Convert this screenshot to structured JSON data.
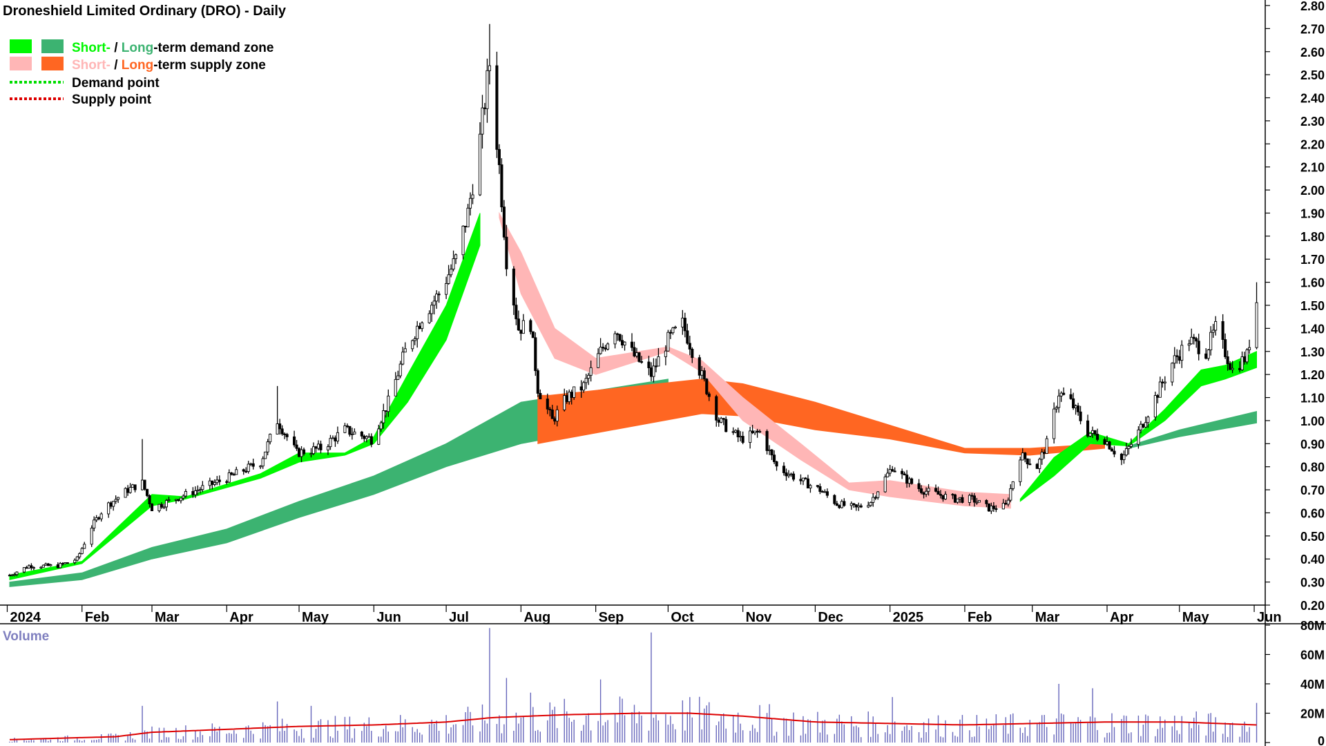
{
  "colors": {
    "short_demand": "#00f700",
    "long_demand": "#3cb371",
    "short_supply": "#ffb6b6",
    "long_supply": "#ff6622",
    "demand_point": "#00dd00",
    "supply_point": "#dd0000",
    "candle": "#000000",
    "volume_bar": "#6666bb",
    "volume_ma": "#dd0000"
  },
  "chart_data": [
    {
      "type": "candlestick",
      "title": "Droneshield Limited Ordinary (DRO) - Daily",
      "y_ticks": [
        "2.80",
        "2.70",
        "2.60",
        "2.50",
        "2.40",
        "2.30",
        "2.20",
        "2.10",
        "2.00",
        "1.90",
        "1.80",
        "1.70",
        "1.60",
        "1.50",
        "1.40",
        "1.30",
        "1.20",
        "1.10",
        "1.00",
        "0.90",
        "0.80",
        "0.70",
        "0.60",
        "0.50",
        "0.40",
        "0.30",
        "0.20"
      ],
      "ylim": [
        0.2,
        2.8
      ],
      "x_ticks": [
        "2024",
        "Feb",
        "Mar",
        "Apr",
        "May",
        "Jun",
        "Jul",
        "Aug",
        "Sep",
        "Oct",
        "Nov",
        "Dec",
        "2025",
        "Feb",
        "Mar",
        "Apr",
        "May",
        "Jun"
      ],
      "legend": [
        {
          "swatches": [
            "short_demand",
            "long_demand"
          ],
          "parts": [
            "Short-",
            " / ",
            "Long",
            "-term demand zone"
          ]
        },
        {
          "swatches": [
            "short_supply",
            "long_supply"
          ],
          "parts": [
            "Short-",
            " / ",
            "Long",
            "-term supply zone"
          ]
        },
        {
          "dotted": "demand_point",
          "text": "Demand point"
        },
        {
          "dotted": "supply_point",
          "text": "Supply point"
        }
      ],
      "close_path": [
        [
          "2024-01-02",
          0.33
        ],
        [
          "2024-01-10",
          0.37
        ],
        [
          "2024-01-22",
          0.37
        ],
        [
          "2024-01-30",
          0.4
        ],
        [
          "2024-02-05",
          0.54
        ],
        [
          "2024-02-10",
          0.62
        ],
        [
          "2024-02-20",
          0.7
        ],
        [
          "2024-02-26",
          0.73
        ],
        [
          "2024-03-01",
          0.62
        ],
        [
          "2024-03-08",
          0.65
        ],
        [
          "2024-03-20",
          0.7
        ],
        [
          "2024-04-01",
          0.75
        ],
        [
          "2024-04-15",
          0.82
        ],
        [
          "2024-04-22",
          1.0
        ],
        [
          "2024-04-30",
          0.86
        ],
        [
          "2024-05-10",
          0.88
        ],
        [
          "2024-05-20",
          0.96
        ],
        [
          "2024-05-31",
          0.92
        ],
        [
          "2024-06-07",
          1.08
        ],
        [
          "2024-06-14",
          1.3
        ],
        [
          "2024-06-21",
          1.45
        ],
        [
          "2024-06-28",
          1.55
        ],
        [
          "2024-07-05",
          1.7
        ],
        [
          "2024-07-10",
          1.9
        ],
        [
          "2024-07-15",
          2.22
        ],
        [
          "2024-07-19",
          2.55
        ],
        [
          "2024-07-23",
          2.1
        ],
        [
          "2024-07-26",
          1.7
        ],
        [
          "2024-07-31",
          1.4
        ],
        [
          "2024-08-05",
          1.42
        ],
        [
          "2024-08-08",
          1.14
        ],
        [
          "2024-08-14",
          1.0
        ],
        [
          "2024-08-20",
          1.1
        ],
        [
          "2024-08-27",
          1.15
        ],
        [
          "2024-09-03",
          1.3
        ],
        [
          "2024-09-09",
          1.4
        ],
        [
          "2024-09-17",
          1.28
        ],
        [
          "2024-09-24",
          1.2
        ],
        [
          "2024-10-01",
          1.35
        ],
        [
          "2024-10-07",
          1.42
        ],
        [
          "2024-10-14",
          1.22
        ],
        [
          "2024-10-22",
          1.0
        ],
        [
          "2024-10-31",
          0.92
        ],
        [
          "2024-11-08",
          0.95
        ],
        [
          "2024-11-15",
          0.8
        ],
        [
          "2024-11-25",
          0.74
        ],
        [
          "2024-12-03",
          0.7
        ],
        [
          "2024-12-10",
          0.64
        ],
        [
          "2024-12-18",
          0.62
        ],
        [
          "2024-12-24",
          0.65
        ],
        [
          "2025-01-02",
          0.8
        ],
        [
          "2025-01-07",
          0.75
        ],
        [
          "2025-01-14",
          0.7
        ],
        [
          "2025-01-21",
          0.68
        ],
        [
          "2025-01-28",
          0.66
        ],
        [
          "2025-02-04",
          0.66
        ],
        [
          "2025-02-11",
          0.62
        ],
        [
          "2025-02-18",
          0.63
        ],
        [
          "2025-02-24",
          0.85
        ],
        [
          "2025-03-03",
          0.8
        ],
        [
          "2025-03-07",
          0.9
        ],
        [
          "2025-03-12",
          1.12
        ],
        [
          "2025-03-17",
          1.08
        ],
        [
          "2025-03-24",
          0.95
        ],
        [
          "2025-03-31",
          0.92
        ],
        [
          "2025-04-07",
          0.83
        ],
        [
          "2025-04-14",
          0.95
        ],
        [
          "2025-04-21",
          1.1
        ],
        [
          "2025-04-28",
          1.25
        ],
        [
          "2025-05-05",
          1.35
        ],
        [
          "2025-05-12",
          1.3
        ],
        [
          "2025-05-16",
          1.4
        ],
        [
          "2025-05-23",
          1.22
        ],
        [
          "2025-05-29",
          1.28
        ],
        [
          "2025-06-02",
          1.52
        ]
      ],
      "wick_spikes": [
        {
          "date": "2024-07-19",
          "high": 2.72
        },
        {
          "date": "2024-02-26",
          "high": 0.92
        },
        {
          "date": "2024-04-22",
          "high": 1.15
        },
        {
          "date": "2025-06-02",
          "high": 1.6
        }
      ],
      "short_demand_zone": [
        [
          "2024-01-02",
          0.31,
          0.33
        ],
        [
          "2024-02-01",
          0.38,
          0.39
        ],
        [
          "2024-02-15",
          0.5,
          0.53
        ],
        [
          "2024-03-01",
          0.63,
          0.68
        ],
        [
          "2024-03-15",
          0.66,
          0.67
        ],
        [
          "2024-04-15",
          0.75,
          0.77
        ],
        [
          "2024-05-01",
          0.82,
          0.86
        ],
        [
          "2024-05-20",
          0.85,
          0.86
        ],
        [
          "2024-06-01",
          0.9,
          0.93
        ],
        [
          "2024-06-15",
          1.08,
          1.2
        ],
        [
          "2024-07-01",
          1.35,
          1.5
        ],
        [
          "2024-07-15",
          1.76,
          1.9
        ]
      ],
      "long_demand_zone": [
        [
          "2024-01-02",
          0.28,
          0.3
        ],
        [
          "2024-02-01",
          0.31,
          0.34
        ],
        [
          "2024-03-01",
          0.4,
          0.45
        ],
        [
          "2024-04-01",
          0.47,
          0.53
        ],
        [
          "2024-05-01",
          0.58,
          0.65
        ],
        [
          "2024-06-01",
          0.68,
          0.76
        ],
        [
          "2024-07-01",
          0.8,
          0.9
        ],
        [
          "2024-08-01",
          0.9,
          1.08
        ],
        [
          "2024-09-01",
          0.96,
          1.13
        ],
        [
          "2024-10-01",
          1.03,
          1.18
        ]
      ],
      "long_supply_zone": [
        [
          "2024-08-08",
          0.9,
          1.11
        ],
        [
          "2024-08-13",
          0.91,
          1.11
        ],
        [
          "2024-10-15",
          1.03,
          1.18
        ],
        [
          "2024-11-01",
          1.02,
          1.16
        ],
        [
          "2024-12-01",
          0.96,
          1.08
        ],
        [
          "2025-01-01",
          0.92,
          0.98
        ],
        [
          "2025-02-01",
          0.86,
          0.88
        ],
        [
          "2025-02-28",
          0.85,
          0.88
        ],
        [
          "2025-03-31",
          0.88,
          0.9
        ]
      ],
      "short_supply_zone": [
        [
          "2024-07-23",
          1.88,
          1.9
        ],
        [
          "2024-08-01",
          1.55,
          1.73
        ],
        [
          "2024-08-15",
          1.27,
          1.4
        ],
        [
          "2024-09-01",
          1.2,
          1.27
        ],
        [
          "2024-10-01",
          1.3,
          1.32
        ],
        [
          "2024-10-15",
          1.21,
          1.26
        ],
        [
          "2024-11-01",
          1.0,
          1.1
        ],
        [
          "2024-11-25",
          0.83,
          0.9
        ],
        [
          "2024-12-15",
          0.7,
          0.73
        ],
        [
          "2025-01-01",
          0.67,
          0.74
        ],
        [
          "2025-02-01",
          0.63,
          0.69
        ],
        [
          "2025-02-20",
          0.62,
          0.68
        ]
      ],
      "late_short_demand_zone": [
        [
          "2025-02-24",
          0.65,
          0.66
        ],
        [
          "2025-03-10",
          0.76,
          0.84
        ],
        [
          "2025-03-25",
          0.9,
          0.95
        ],
        [
          "2025-04-10",
          0.89,
          0.9
        ],
        [
          "2025-04-25",
          1.0,
          1.05
        ],
        [
          "2025-05-10",
          1.15,
          1.22
        ],
        [
          "2025-05-20",
          1.18,
          1.24
        ],
        [
          "2025-06-02",
          1.23,
          1.3
        ]
      ],
      "late_long_demand_zone": [
        [
          "2025-04-10",
          0.88,
          0.89
        ],
        [
          "2025-05-01",
          0.93,
          0.96
        ],
        [
          "2025-06-02",
          0.99,
          1.04
        ]
      ]
    },
    {
      "type": "bar",
      "title": "Volume",
      "y_ticks": [
        "80M",
        "60M",
        "40M",
        "20M",
        "0"
      ],
      "ylim": [
        0,
        80
      ],
      "volume_peaks": [
        [
          "2024-07-19",
          78
        ],
        [
          "2024-09-24",
          75
        ],
        [
          "2024-07-26",
          44
        ],
        [
          "2024-09-03",
          43
        ],
        [
          "2024-08-05",
          34
        ],
        [
          "2024-04-22",
          28
        ],
        [
          "2024-05-06",
          25
        ],
        [
          "2024-02-26",
          25
        ],
        [
          "2025-03-12",
          40
        ],
        [
          "2025-06-02",
          27
        ],
        [
          "2025-01-02",
          31
        ],
        [
          "2025-03-26",
          37
        ]
      ],
      "volume_ma": [
        [
          "2024-01-02",
          2
        ],
        [
          "2024-02-15",
          4
        ],
        [
          "2024-03-01",
          7
        ],
        [
          "2024-04-01",
          9
        ],
        [
          "2024-05-01",
          11
        ],
        [
          "2024-06-01",
          12
        ],
        [
          "2024-07-01",
          14
        ],
        [
          "2024-07-20",
          17
        ],
        [
          "2024-08-20",
          19
        ],
        [
          "2024-09-20",
          20
        ],
        [
          "2024-10-10",
          20
        ],
        [
          "2024-11-01",
          18
        ],
        [
          "2024-12-01",
          14
        ],
        [
          "2025-01-01",
          13
        ],
        [
          "2025-02-01",
          12
        ],
        [
          "2025-03-01",
          13
        ],
        [
          "2025-04-01",
          14
        ],
        [
          "2025-05-01",
          14
        ],
        [
          "2025-06-02",
          12
        ]
      ]
    }
  ]
}
